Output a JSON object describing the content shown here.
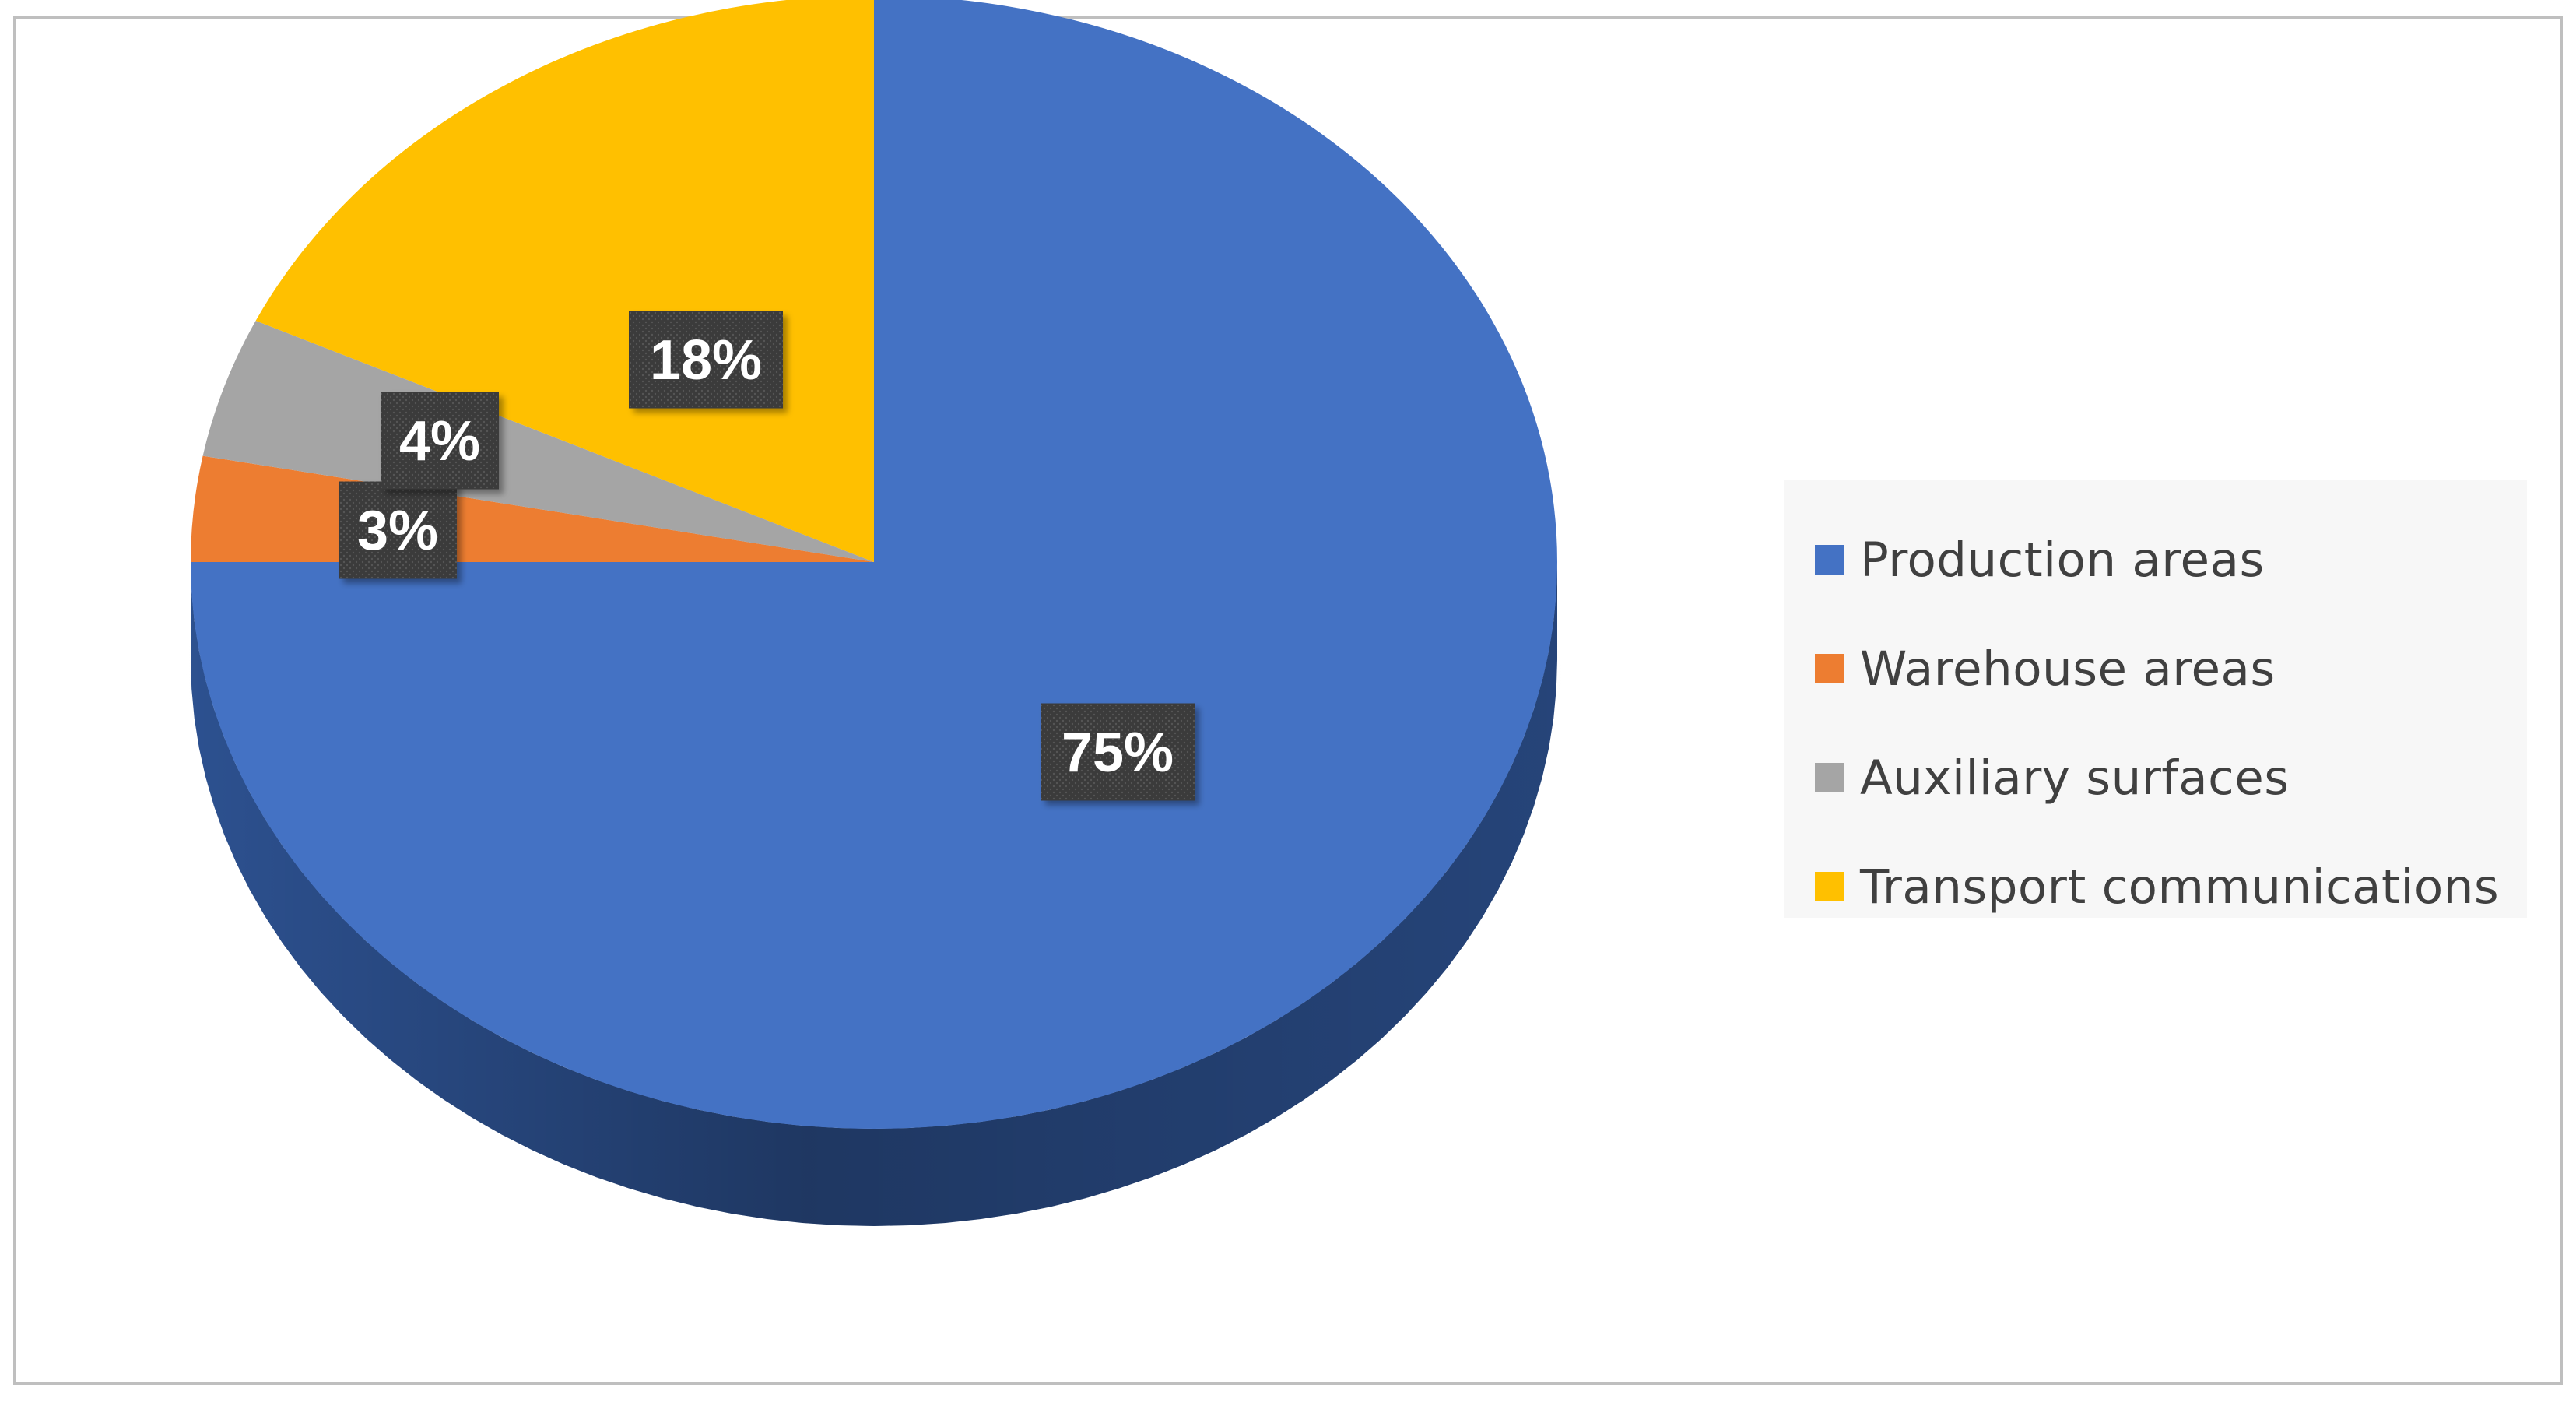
{
  "chart_data": {
    "type": "pie",
    "title": "",
    "slices": [
      {
        "label": "Production areas",
        "value": 75,
        "display": "75%",
        "color": "#4472C4",
        "side_color": "#2F5597"
      },
      {
        "label": "Warehouse areas",
        "value": 3,
        "display": "3%",
        "color": "#ED7D31",
        "side_color": "#B85E22"
      },
      {
        "label": "Auxiliary surfaces",
        "value": 4,
        "display": "4%",
        "color": "#A5A5A5",
        "side_color": "#7F7F7F"
      },
      {
        "label": "Transport communications",
        "value": 18,
        "display": "18%",
        "color": "#FFC000",
        "side_color": "#C79600"
      }
    ],
    "data_labels": "percent",
    "legend_position": "right",
    "style": "3d"
  },
  "legend": {
    "items": [
      {
        "label": "Production areas",
        "color": "#4472C4"
      },
      {
        "label": "Warehouse areas",
        "color": "#ED7D31"
      },
      {
        "label": "Auxiliary surfaces",
        "color": "#A5A5A5"
      },
      {
        "label": "Transport communications",
        "color": "#FFC000"
      }
    ]
  }
}
